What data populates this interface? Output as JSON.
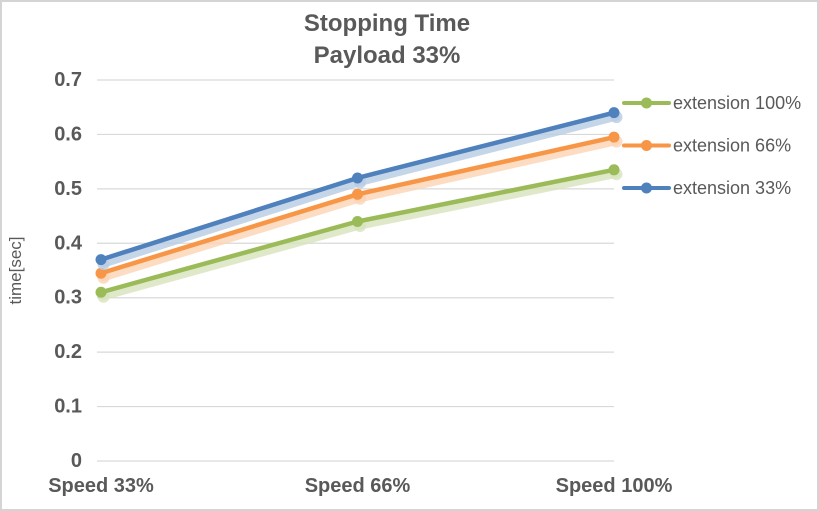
{
  "chart_data": {
    "type": "line",
    "title": "Stopping Time",
    "subtitle": "Payload 33%",
    "xlabel": "",
    "ylabel": "time[sec]",
    "categories": [
      "Speed 33%",
      "Speed 66%",
      "Speed 100%"
    ],
    "series": [
      {
        "name": "extension 100%",
        "color": "#9bbb59",
        "shadow_color": "#d7e4bd",
        "values": [
          0.31,
          0.44,
          0.535
        ]
      },
      {
        "name": "extension 66%",
        "color": "#f79646",
        "shadow_color": "#fbd5b5",
        "values": [
          0.345,
          0.49,
          0.595
        ]
      },
      {
        "name": "extension 33%",
        "color": "#4f81bd",
        "shadow_color": "#b8cce4",
        "values": [
          0.37,
          0.52,
          0.64
        ]
      }
    ],
    "ylim": [
      0,
      0.7
    ],
    "yticks": [
      {
        "value": 0.0,
        "label": "0"
      },
      {
        "value": 0.1,
        "label": "0.1"
      },
      {
        "value": 0.2,
        "label": "0.2"
      },
      {
        "value": 0.3,
        "label": "0.3"
      },
      {
        "value": 0.4,
        "label": "0.4"
      },
      {
        "value": 0.5,
        "label": "0.5"
      },
      {
        "value": 0.6,
        "label": "0.6"
      },
      {
        "value": 0.7,
        "label": "0.7"
      }
    ],
    "grid": true,
    "legend_position": "right",
    "colors": {
      "text": "#595959",
      "gridline": "#d9d9d9",
      "background": "#ffffff",
      "border": "#d4d4d4"
    }
  }
}
